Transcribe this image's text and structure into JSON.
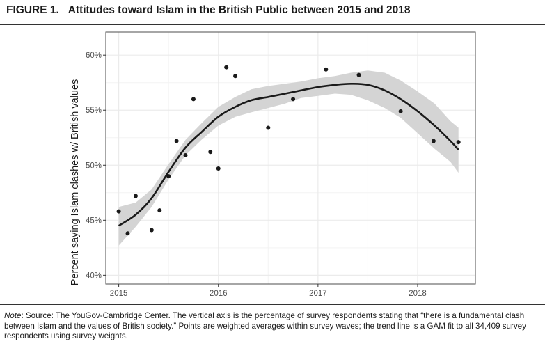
{
  "figure": {
    "label": "FIGURE 1.",
    "title": "Attitudes toward Islam in the British Public between 2015 and 2018"
  },
  "note": {
    "label": "Note",
    "text": ": Source: The YouGov-Cambridge Center. The vertical axis is the percentage of survey respondents stating that “there is a fundamental clash between Islam and the values of British society.” Points are weighted averages within survey waves; the trend line is a GAM fit to all 34,409 survey respondents using survey weights."
  },
  "colors": {
    "points": "#1a1a1a",
    "line": "#1a1a1a",
    "band": "#d4d4d4",
    "grid": "#ebebeb",
    "panel_border": "#4d4d4d"
  },
  "chart_data": {
    "type": "scatter",
    "title": "",
    "xlabel": "",
    "ylabel": "Percent saying Islam clashes w/ British values",
    "xlim": [
      2014.87,
      2018.58
    ],
    "ylim": [
      39.2,
      62.1
    ],
    "grid": true,
    "x_ticks": [
      2015,
      2016,
      2017,
      2018
    ],
    "x_tick_labels": [
      "2015",
      "2016",
      "2017",
      "2018"
    ],
    "y_ticks": [
      40,
      45,
      50,
      55,
      60
    ],
    "y_tick_labels": [
      "40%",
      "45%",
      "50%",
      "55%",
      "60%"
    ],
    "series": [
      {
        "kind": "points",
        "x": [
          2015.0,
          2015.09,
          2015.17,
          2015.33,
          2015.41,
          2015.5,
          2015.58,
          2015.67,
          2015.75,
          2015.92,
          2016.0,
          2016.08,
          2016.17,
          2016.5,
          2016.75,
          2017.08,
          2017.41,
          2017.83,
          2018.16,
          2018.41
        ],
        "y": [
          45.8,
          43.8,
          47.2,
          44.1,
          45.9,
          49.0,
          52.2,
          50.9,
          56.0,
          51.2,
          49.7,
          58.9,
          58.1,
          53.4,
          56.0,
          58.7,
          58.2,
          54.9,
          52.2,
          52.1
        ]
      },
      {
        "kind": "trend",
        "x": [
          2015.0,
          2015.17,
          2015.33,
          2015.5,
          2015.67,
          2015.83,
          2016.0,
          2016.17,
          2016.33,
          2016.5,
          2016.67,
          2016.83,
          2017.0,
          2017.17,
          2017.33,
          2017.5,
          2017.67,
          2017.83,
          2018.0,
          2018.17,
          2018.33,
          2018.41
        ],
        "y": [
          44.5,
          45.5,
          47.0,
          49.4,
          51.6,
          53.0,
          54.4,
          55.3,
          55.9,
          56.2,
          56.5,
          56.8,
          57.1,
          57.3,
          57.4,
          57.3,
          56.8,
          56.0,
          54.9,
          53.6,
          52.2,
          51.4
        ],
        "lower": [
          42.7,
          44.4,
          46.2,
          48.7,
          50.9,
          52.3,
          53.6,
          54.4,
          54.8,
          55.2,
          55.6,
          56.1,
          56.3,
          56.5,
          56.4,
          55.9,
          55.2,
          54.3,
          52.9,
          51.5,
          50.3,
          49.3
        ],
        "upper": [
          46.2,
          46.6,
          47.8,
          50.1,
          52.3,
          53.8,
          55.3,
          56.2,
          56.9,
          57.2,
          57.4,
          57.6,
          57.9,
          58.1,
          58.4,
          58.6,
          58.4,
          57.7,
          56.7,
          55.6,
          54.0,
          53.4
        ]
      }
    ]
  }
}
